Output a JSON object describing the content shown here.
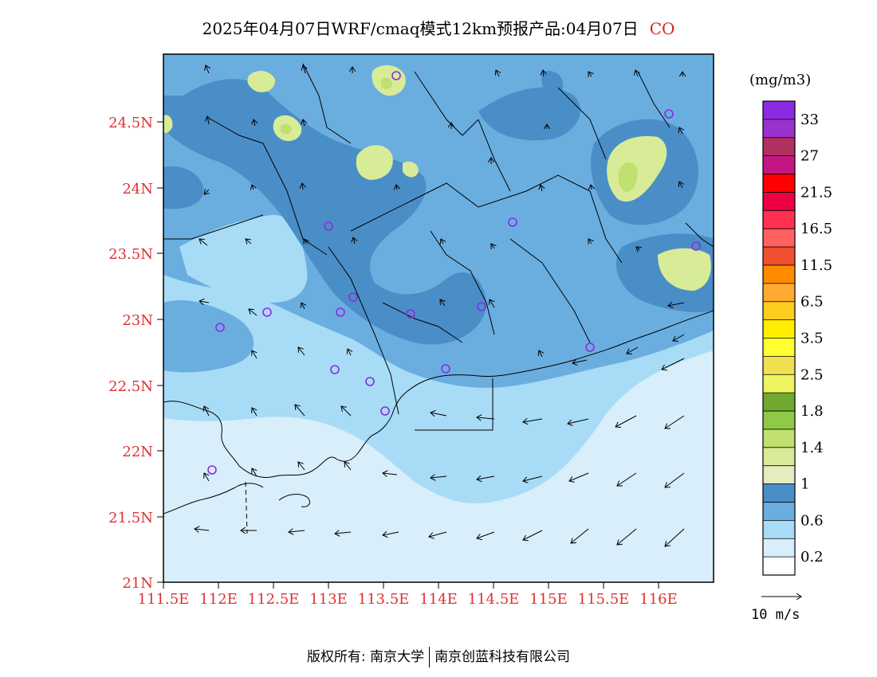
{
  "title": {
    "text": "2025年04月07日WRF/cmaq模式12km预报产品:04月07日",
    "species": "CO"
  },
  "legend": {
    "unit": "(mg/m3)",
    "labels": [
      "33",
      "27",
      "21.5",
      "16.5",
      "11.5",
      "6.5",
      "3.5",
      "2.5",
      "1.8",
      "1.4",
      "1",
      "0.6",
      "0.2"
    ],
    "colors": [
      "#8a2be2",
      "#9a32cd",
      "#b03060",
      "#c71585",
      "#ff0000",
      "#ee0044",
      "#ff3050",
      "#ff6060",
      "#f05030",
      "#ff8c00",
      "#ffaa30",
      "#ffcc20",
      "#ffee00",
      "#ffff30",
      "#f0e050",
      "#eef560",
      "#70a830",
      "#90c848",
      "#c0e070",
      "#d8ec98",
      "#e4ecc0",
      "#4a8ec8",
      "#6aaee0",
      "#a8dcf6",
      "#d8eefa",
      "#ffffff"
    ]
  },
  "wind_reference": {
    "label": "10 m/s"
  },
  "axes": {
    "lat_ticks": [
      "24.5N",
      "24N",
      "23.5N",
      "23N",
      "22.5N",
      "22N",
      "21.5N",
      "21N"
    ],
    "lon_ticks": [
      "111.5E",
      "112E",
      "112.5E",
      "113E",
      "113.5E",
      "114E",
      "114.5E",
      "115E",
      "115.5E",
      "116E"
    ]
  },
  "footer": {
    "left": "版权所有: 南京大学",
    "right": "南京创蓝科技有限公司"
  }
}
